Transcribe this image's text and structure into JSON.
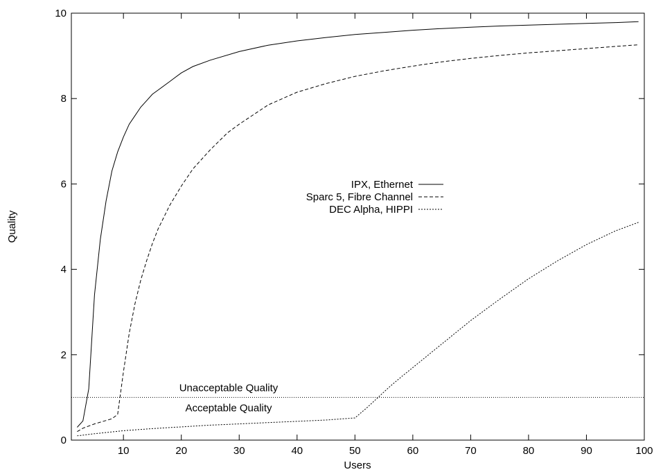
{
  "chart_data": {
    "type": "line",
    "xlabel": "Users",
    "ylabel": "Quality",
    "xlim": [
      1,
      100
    ],
    "ylim": [
      0,
      10
    ],
    "x_ticks": [
      10,
      20,
      30,
      40,
      50,
      60,
      70,
      80,
      90,
      100
    ],
    "y_ticks": [
      0,
      2,
      4,
      6,
      8,
      10
    ],
    "grid": false,
    "legend_position": "center",
    "threshold": {
      "y": 1,
      "label_above": "Unacceptable Quality",
      "label_below": "Acceptable Quality"
    },
    "series": [
      {
        "name": "IPX, Ethernet",
        "dash": "solid",
        "x": [
          2,
          3,
          4,
          5,
          6,
          7,
          8,
          9,
          10,
          11,
          12,
          13,
          14,
          15,
          16,
          18,
          20,
          22,
          25,
          30,
          35,
          40,
          45,
          50,
          55,
          60,
          65,
          70,
          75,
          80,
          85,
          90,
          95,
          99
        ],
        "y": [
          0.3,
          0.45,
          1.2,
          3.4,
          4.7,
          5.6,
          6.3,
          6.75,
          7.1,
          7.4,
          7.6,
          7.8,
          7.95,
          8.1,
          8.2,
          8.4,
          8.6,
          8.75,
          8.9,
          9.1,
          9.25,
          9.35,
          9.43,
          9.5,
          9.55,
          9.6,
          9.64,
          9.67,
          9.7,
          9.72,
          9.74,
          9.76,
          9.78,
          9.8
        ]
      },
      {
        "name": "Sparc 5, Fibre Channel",
        "dash": "dashed",
        "x": [
          2,
          3,
          4,
          5,
          6,
          7,
          8,
          9,
          10,
          11,
          12,
          13,
          14,
          15,
          16,
          18,
          20,
          22,
          25,
          28,
          30,
          35,
          40,
          45,
          50,
          55,
          60,
          65,
          70,
          75,
          80,
          85,
          90,
          95,
          99
        ],
        "y": [
          0.2,
          0.28,
          0.33,
          0.38,
          0.42,
          0.46,
          0.5,
          0.6,
          1.6,
          2.5,
          3.2,
          3.75,
          4.2,
          4.6,
          4.95,
          5.5,
          5.95,
          6.35,
          6.8,
          7.2,
          7.4,
          7.85,
          8.15,
          8.35,
          8.52,
          8.65,
          8.76,
          8.86,
          8.94,
          9.01,
          9.07,
          9.12,
          9.17,
          9.22,
          9.26
        ]
      },
      {
        "name": "DEC Alpha, HIPPI",
        "dash": "dotted",
        "x": [
          2,
          5,
          10,
          15,
          20,
          25,
          30,
          35,
          40,
          45,
          50,
          52,
          54,
          56,
          58,
          60,
          65,
          70,
          75,
          80,
          85,
          90,
          95,
          99
        ],
        "y": [
          0.1,
          0.15,
          0.22,
          0.27,
          0.31,
          0.35,
          0.38,
          0.41,
          0.44,
          0.47,
          0.52,
          0.75,
          1.0,
          1.25,
          1.48,
          1.7,
          2.25,
          2.8,
          3.3,
          3.78,
          4.2,
          4.58,
          4.9,
          5.1
        ]
      }
    ]
  }
}
